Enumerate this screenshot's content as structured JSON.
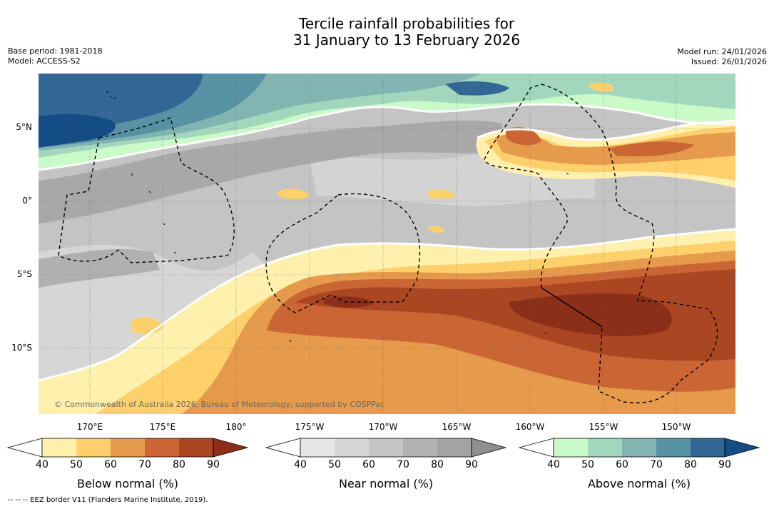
{
  "title": {
    "line1": "Tercile rainfall probabilities for",
    "line2": "31 January to 13 February 2026"
  },
  "meta": {
    "base_period": "Base period: 1981-2018",
    "model": "Model: ACCESS-S2",
    "model_run": "Model run: 24/01/2026",
    "issued": "Issued: 26/01/2026"
  },
  "map": {
    "copyright": "© Commonwealth of Australia 2026, Bureau of Meteorology, supported by COSPPac",
    "latitude_labels": [
      "5°N",
      "0°",
      "5°S",
      "10°S"
    ],
    "longitude_labels": [
      "170°E",
      "175°E",
      "180°",
      "175°W",
      "170°W",
      "165°W",
      "160°W",
      "155°W",
      "150°W"
    ]
  },
  "legend": {
    "below_normal": {
      "title": "Below normal (%)",
      "ticks": [
        "40",
        "50",
        "60",
        "70",
        "80",
        "90"
      ],
      "colors": [
        "#fff1ad",
        "#fdd06c",
        "#e59a4c",
        "#cb6634",
        "#ab4623",
        "#8c2f19"
      ]
    },
    "near_normal": {
      "title": "Near normal (%)",
      "ticks": [
        "40",
        "50",
        "60",
        "70",
        "80",
        "90"
      ],
      "colors": [
        "#e6e6e6",
        "#d5d5d5",
        "#c4c4c4",
        "#b2b2b2",
        "#a3a3a3",
        "#8f8f8f"
      ]
    },
    "above_normal": {
      "title": "Above normal (%)",
      "ticks": [
        "40",
        "50",
        "60",
        "70",
        "80",
        "90"
      ],
      "colors": [
        "#cafac8",
        "#a3d7bd",
        "#82b5b2",
        "#5892a5",
        "#336796",
        "#144c86"
      ]
    }
  },
  "footnote": "--  --  -- EEZ border V11 (Flanders Marine Institute, 2019)."
}
